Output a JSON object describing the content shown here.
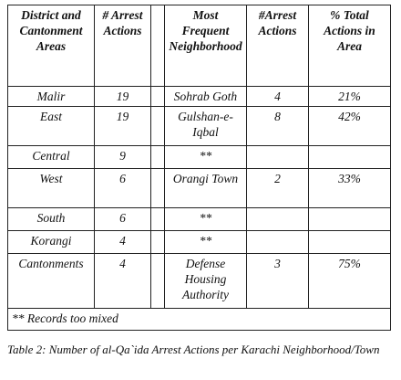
{
  "table": {
    "header": [
      "District and Cantonment Areas",
      "# Arrest Actions",
      "Most Frequent Neighborhood",
      "#Arrest Actions",
      "% Total Actions in Area"
    ],
    "rows": [
      [
        "Malir",
        "19",
        "Sohrab Goth",
        "4",
        "21%"
      ],
      [
        "East",
        "19",
        "Gulshan-e-Iqbal",
        "8",
        "42%"
      ],
      [
        "Central",
        "9",
        "**",
        null,
        null
      ],
      [
        "West",
        "6",
        "Orangi Town",
        "2",
        "33%"
      ],
      [
        "South",
        "6",
        "**",
        null,
        null
      ],
      [
        "Korangi",
        "4",
        "**",
        null,
        null
      ],
      [
        "Cantonments",
        "4",
        "Defense Housing Authority",
        "3",
        "75%"
      ]
    ],
    "footnote": "** Records too mixed"
  },
  "caption": "Table 2: Number of al-Qa`ida Arrest Actions per Karachi Neighborhood/Town"
}
